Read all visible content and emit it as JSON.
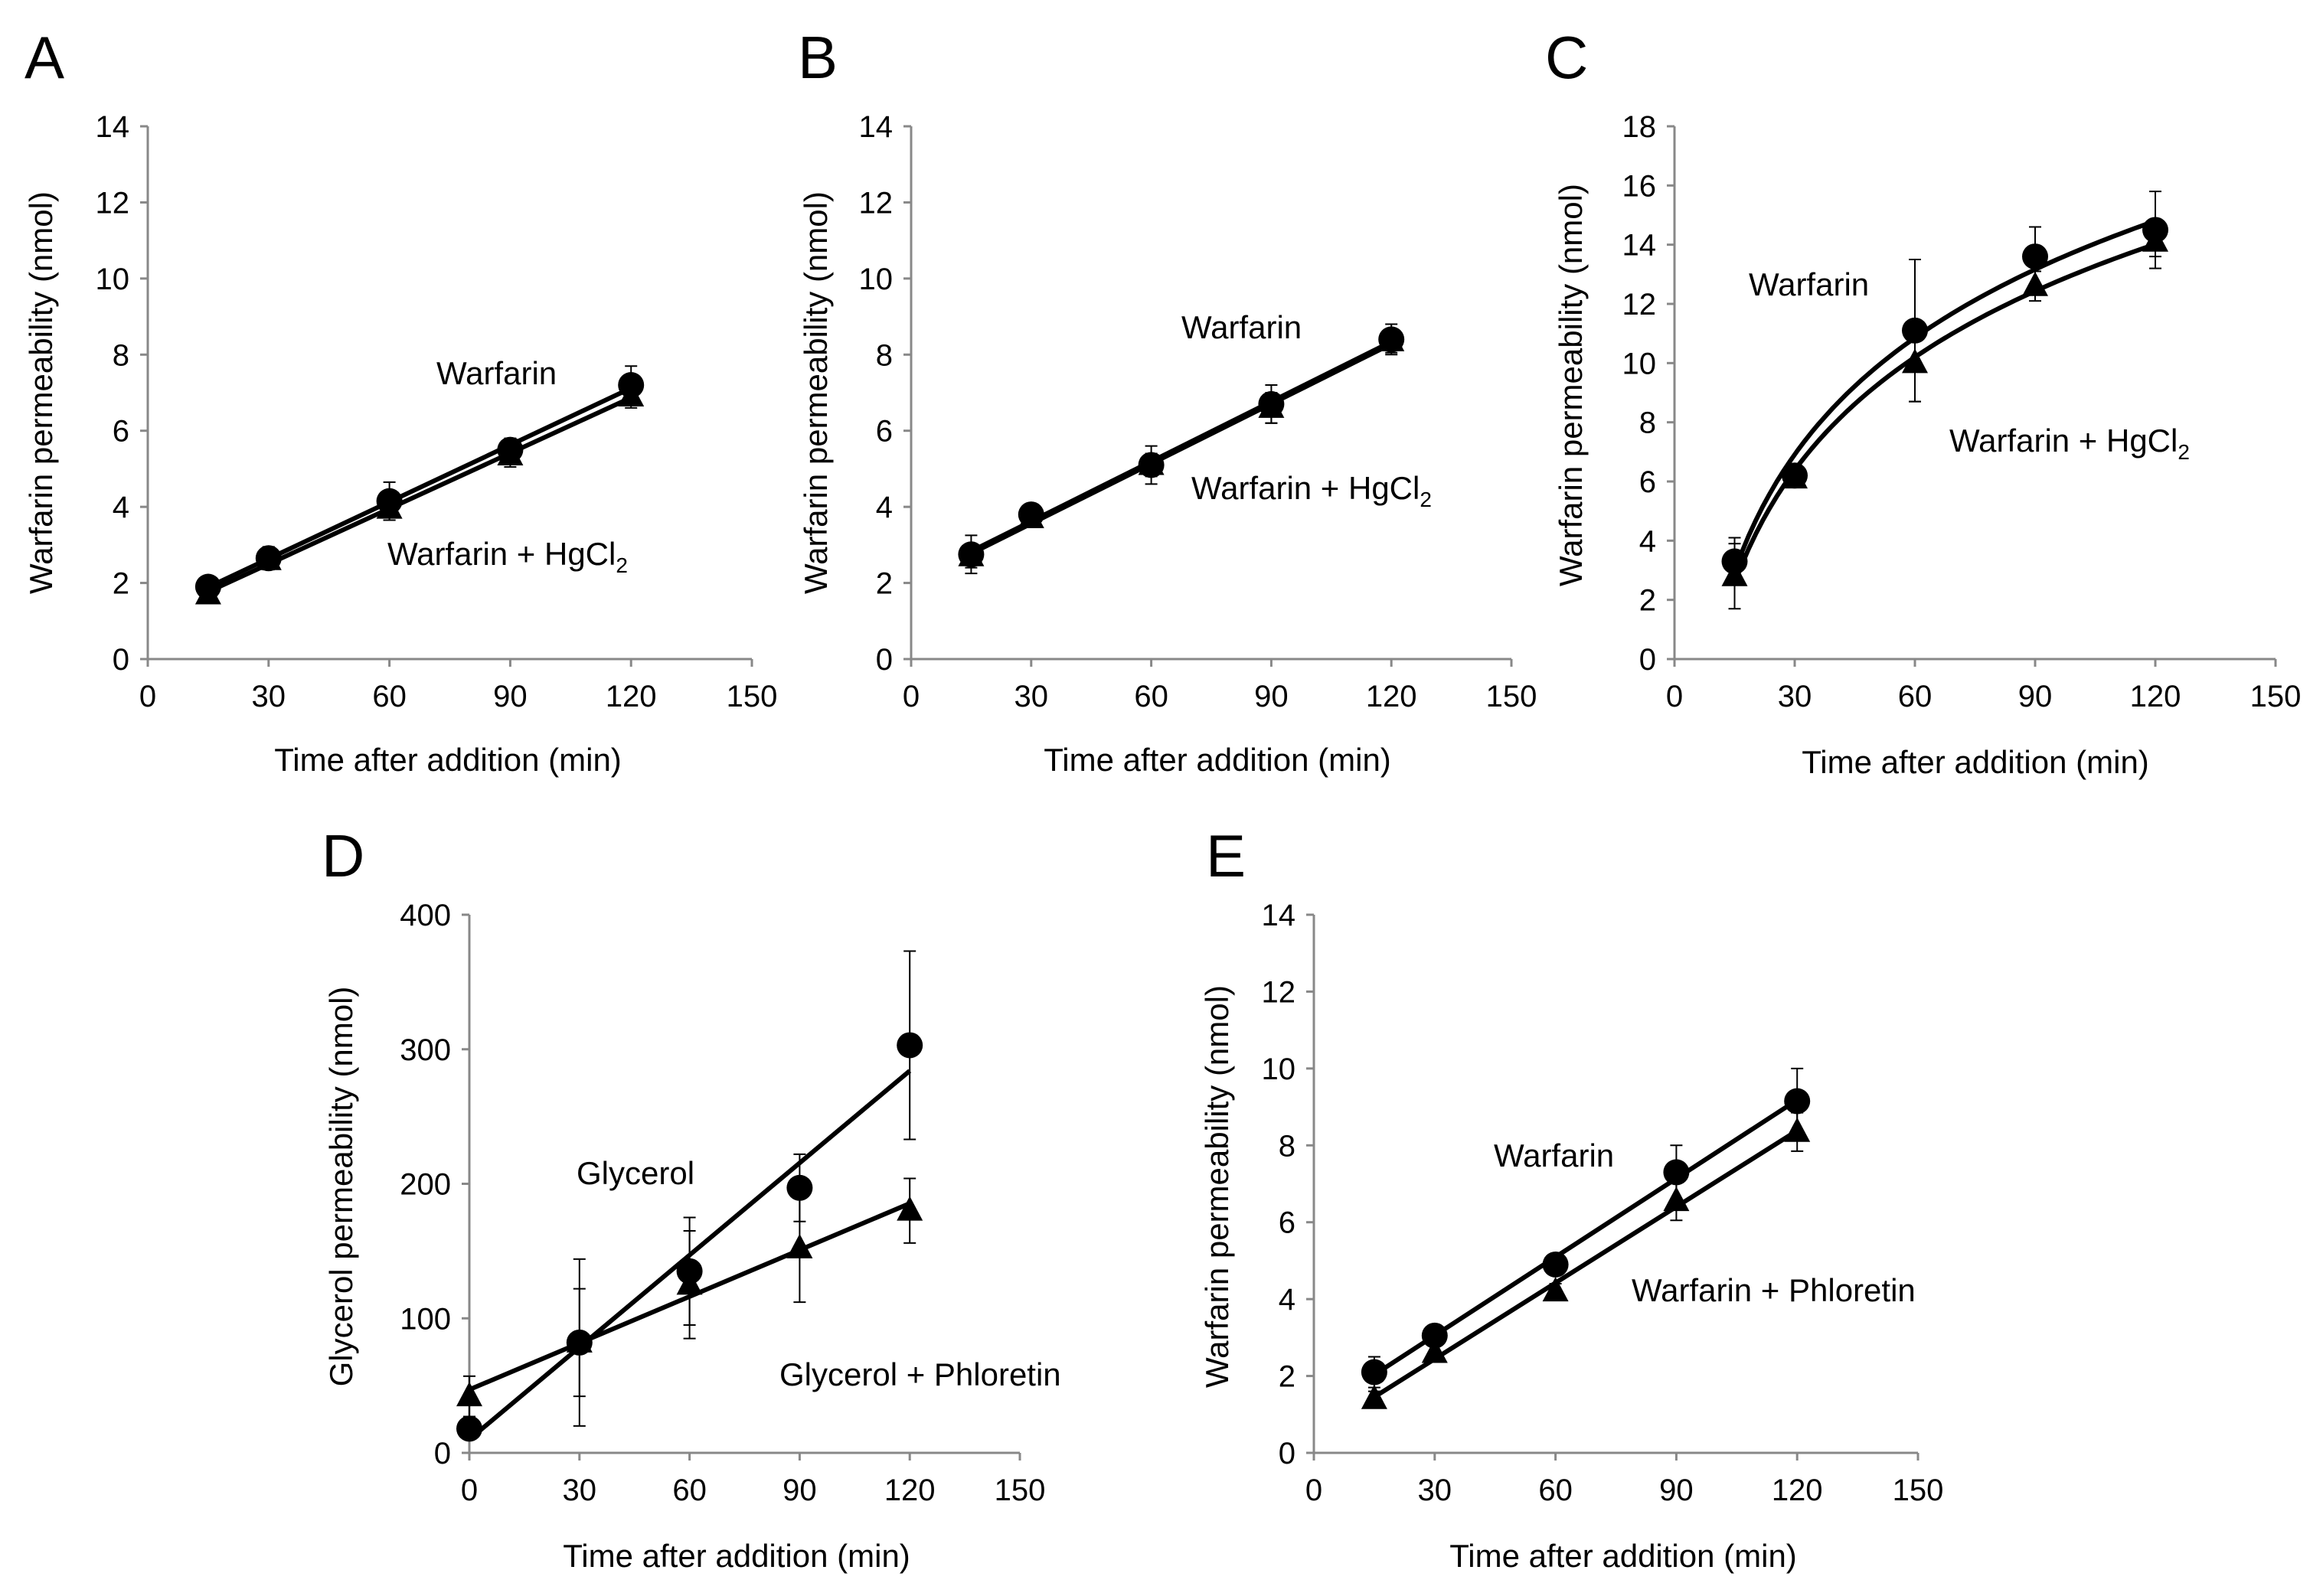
{
  "chart_data": [
    {
      "panel": "A",
      "type": "line",
      "xlabel": "Time after addition (min)",
      "ylabel": "Warfarin permeability (nmol)",
      "xlim": [
        0,
        150
      ],
      "xticks": [
        0,
        30,
        60,
        90,
        120,
        150
      ],
      "ylim": [
        0,
        14
      ],
      "yticks": [
        0,
        2,
        4,
        6,
        8,
        10,
        12,
        14
      ],
      "annotations": [
        {
          "id": "a1",
          "text": "Warfarin"
        },
        {
          "id": "a2",
          "text": "Warfarin + HgCl",
          "sub": "2"
        }
      ],
      "series": [
        {
          "name": "Warfarin",
          "marker": "circle",
          "fit": "linear",
          "x": [
            15,
            30,
            60,
            90,
            120
          ],
          "values": [
            1.9,
            2.65,
            4.15,
            5.5,
            7.2
          ],
          "err": [
            0.2,
            0.3,
            0.5,
            0.3,
            0.5
          ]
        },
        {
          "name": "Warfarin + HgCl2",
          "marker": "triangle",
          "fit": "linear",
          "x": [
            15,
            30,
            60,
            90,
            120
          ],
          "values": [
            1.7,
            2.6,
            3.95,
            5.35,
            6.9
          ],
          "err": [
            0.15,
            0.2,
            0.3,
            0.3,
            0.3
          ]
        }
      ]
    },
    {
      "panel": "B",
      "type": "line",
      "xlabel": "Time after addition (min)",
      "ylabel": "Warfarin permeability (nmol)",
      "xlim": [
        0,
        150
      ],
      "xticks": [
        0,
        30,
        60,
        90,
        120,
        150
      ],
      "ylim": [
        0,
        14
      ],
      "yticks": [
        0,
        2,
        4,
        6,
        8,
        10,
        12,
        14
      ],
      "annotations": [
        {
          "id": "b1",
          "text": "Warfarin"
        },
        {
          "id": "b2",
          "text": "Warfarin + HgCl",
          "sub": "2"
        }
      ],
      "series": [
        {
          "name": "Warfarin",
          "marker": "circle",
          "fit": "linear",
          "x": [
            15,
            30,
            60,
            90,
            120
          ],
          "values": [
            2.75,
            3.8,
            5.1,
            6.7,
            8.4
          ],
          "err": [
            0.5,
            0.2,
            0.5,
            0.5,
            0.4
          ]
        },
        {
          "name": "Warfarin + HgCl2",
          "marker": "triangle",
          "fit": "linear",
          "x": [
            15,
            30,
            60,
            90,
            120
          ],
          "values": [
            2.7,
            3.7,
            5.1,
            6.6,
            8.35
          ],
          "err": [
            0.3,
            0.2,
            0.3,
            0.4,
            0.3
          ]
        }
      ]
    },
    {
      "panel": "C",
      "type": "line",
      "xlabel": "Time after addition (min)",
      "ylabel": "Warfarin permeability (nmol)",
      "xlim": [
        0,
        150
      ],
      "xticks": [
        0,
        30,
        60,
        90,
        120,
        150
      ],
      "ylim": [
        0,
        18
      ],
      "yticks": [
        0,
        2,
        4,
        6,
        8,
        10,
        12,
        14,
        16,
        18
      ],
      "annotations": [
        {
          "id": "c1",
          "text": "Warfarin"
        },
        {
          "id": "c2",
          "text": "Warfarin + HgCl",
          "sub": "2"
        }
      ],
      "series": [
        {
          "name": "Warfarin",
          "marker": "circle",
          "fit": "log",
          "x": [
            15,
            30,
            60,
            90,
            120
          ],
          "values": [
            3.3,
            6.2,
            11.1,
            13.6,
            14.5
          ],
          "err": [
            0.8,
            0.4,
            2.4,
            1.0,
            1.3
          ]
        },
        {
          "name": "Warfarin + HgCl2",
          "marker": "triangle",
          "fit": "log",
          "x": [
            15,
            30,
            60,
            90,
            120
          ],
          "values": [
            2.8,
            6.1,
            10.0,
            12.6,
            14.1
          ],
          "err": [
            1.1,
            0.3,
            1.3,
            0.5,
            0.5
          ]
        }
      ]
    },
    {
      "panel": "D",
      "type": "line",
      "xlabel": "Time after addition (min)",
      "ylabel": "Glycerol permeability (nmol)",
      "xlim": [
        0,
        150
      ],
      "xticks": [
        0,
        30,
        60,
        90,
        120,
        150
      ],
      "ylim": [
        0,
        400
      ],
      "yticks": [
        0,
        100,
        200,
        300,
        400
      ],
      "annotations": [
        {
          "id": "d1",
          "text": "Glycerol"
        },
        {
          "id": "d2",
          "text": "Glycerol + Phloretin"
        }
      ],
      "series": [
        {
          "name": "Glycerol",
          "marker": "circle",
          "fit": "linear",
          "x": [
            0,
            30,
            60,
            90,
            120
          ],
          "values": [
            18,
            82,
            135,
            197,
            303
          ],
          "err": [
            0,
            62,
            40,
            25,
            70
          ]
        },
        {
          "name": "Glycerol + Phloretin",
          "marker": "triangle",
          "fit": "linear",
          "x": [
            0,
            30,
            60,
            90,
            120
          ],
          "values": [
            42,
            82,
            125,
            152,
            180
          ],
          "err": [
            15,
            40,
            40,
            40,
            24
          ]
        }
      ]
    },
    {
      "panel": "E",
      "type": "line",
      "xlabel": "Time after addition (min)",
      "ylabel": "Warfarin permeability (nmol)",
      "xlim": [
        0,
        150
      ],
      "xticks": [
        0,
        30,
        60,
        90,
        120,
        150
      ],
      "ylim": [
        0,
        14
      ],
      "yticks": [
        0,
        2,
        4,
        6,
        8,
        10,
        12,
        14
      ],
      "annotations": [
        {
          "id": "e1",
          "text": "Warfarin"
        },
        {
          "id": "e2",
          "text": "Warfarin + Phloretin"
        }
      ],
      "series": [
        {
          "name": "Warfarin",
          "marker": "circle",
          "fit": "linear",
          "x": [
            15,
            30,
            60,
            90,
            120
          ],
          "values": [
            2.1,
            3.05,
            4.9,
            7.3,
            9.15
          ],
          "err": [
            0.4,
            0.2,
            0.2,
            0.7,
            0.85
          ]
        },
        {
          "name": "Warfarin + Phloretin",
          "marker": "triangle",
          "fit": "linear",
          "x": [
            15,
            30,
            60,
            90,
            120
          ],
          "values": [
            1.4,
            2.6,
            4.2,
            6.55,
            8.35
          ],
          "err": [
            0.2,
            0.2,
            0.2,
            0.5,
            0.5
          ]
        }
      ]
    }
  ]
}
